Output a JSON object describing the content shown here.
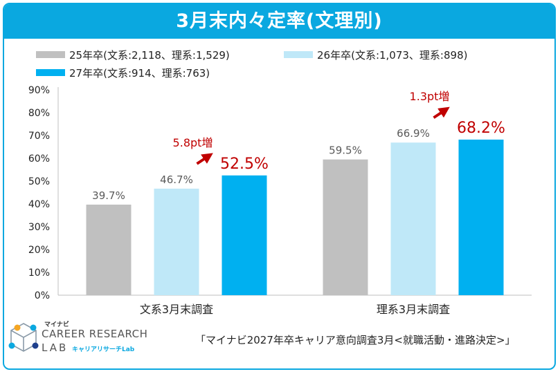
{
  "title": "3月末内々定率(文理別)",
  "chart_data": {
    "type": "bar",
    "categories": [
      "文系3月末調査",
      "理系3月末調査"
    ],
    "series": [
      {
        "name": "25年卒(文系:2,118、理系:1,529)",
        "values": [
          39.7,
          59.5
        ],
        "color": "#c0c0c0",
        "label_color": "#595959"
      },
      {
        "name": "26年卒(文系:1,073、理系:898)",
        "values": [
          46.7,
          66.9
        ],
        "color": "#bfe8f8",
        "label_color": "#595959"
      },
      {
        "name": "27年卒(文系:914、理系:763)",
        "values": [
          52.5,
          68.2
        ],
        "color": "#00b0f0",
        "label_color": "#c00000"
      }
    ],
    "value_labels": [
      [
        "39.7%",
        "59.5%"
      ],
      [
        "46.7%",
        "66.9%"
      ],
      [
        "52.5%",
        "68.2%"
      ]
    ],
    "ylim": [
      0,
      90
    ],
    "yticks": [
      0,
      10,
      20,
      30,
      40,
      50,
      60,
      70,
      80,
      90
    ],
    "ytick_labels": [
      "0%",
      "10%",
      "20%",
      "30%",
      "40%",
      "50%",
      "60%",
      "70%",
      "80%",
      "90%"
    ],
    "annotations": [
      "5.8pt増",
      "1.3pt増"
    ],
    "annotation_color": "#c00000",
    "grid": false,
    "legend_position": "top-left"
  },
  "logo": {
    "maker": "マイナビ",
    "line1": "CAREER RESEARCH",
    "line2": "LAB",
    "line3": "キャリアリサーチLab"
  },
  "source": "「マイナビ2027年卒キャリア意向調査3月<就職活動・進路決定>」"
}
